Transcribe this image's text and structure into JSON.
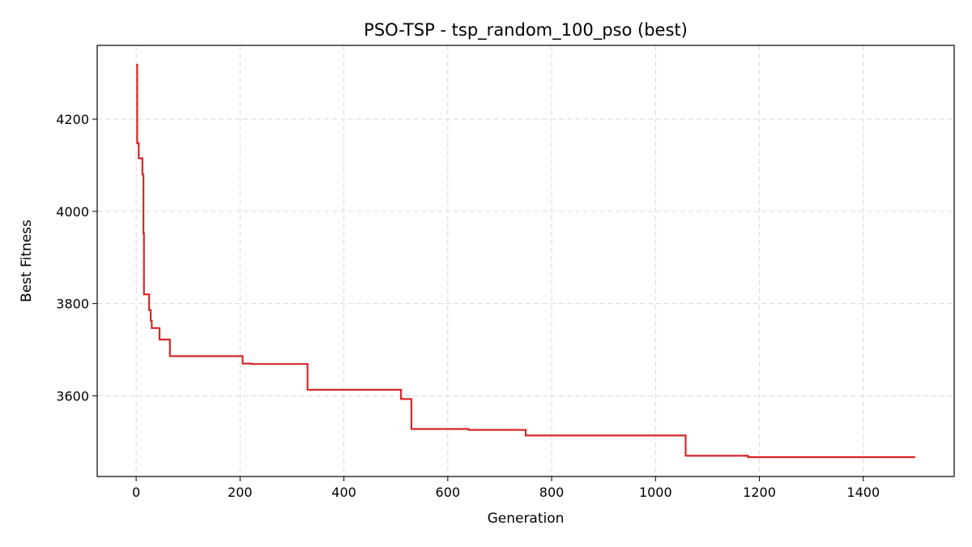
{
  "chart_data": {
    "type": "line",
    "title": "PSO-TSP - tsp_random_100_pso (best)",
    "xlabel": "Generation",
    "ylabel": "Best Fitness",
    "xlim": [
      -75,
      1575
    ],
    "ylim": [
      3425,
      4360
    ],
    "xticks": [
      0,
      200,
      400,
      600,
      800,
      1000,
      1200,
      1400
    ],
    "yticks": [
      3600,
      3800,
      4000,
      4200
    ],
    "grid": true,
    "line_color": "#d62728",
    "series": [
      {
        "step": true,
        "x": [
          0,
          2,
          5,
          12,
          14,
          15,
          25,
          28,
          30,
          45,
          65,
          205,
          222,
          330,
          510,
          530,
          640,
          750,
          1058,
          1178,
          1500
        ],
        "values": [
          4318,
          4148,
          4115,
          4080,
          3952,
          3820,
          3786,
          3763,
          3747,
          3722,
          3686,
          3670,
          3669,
          3613,
          3593,
          3528,
          3526,
          3514,
          3470,
          3467,
          3467
        ]
      }
    ]
  }
}
